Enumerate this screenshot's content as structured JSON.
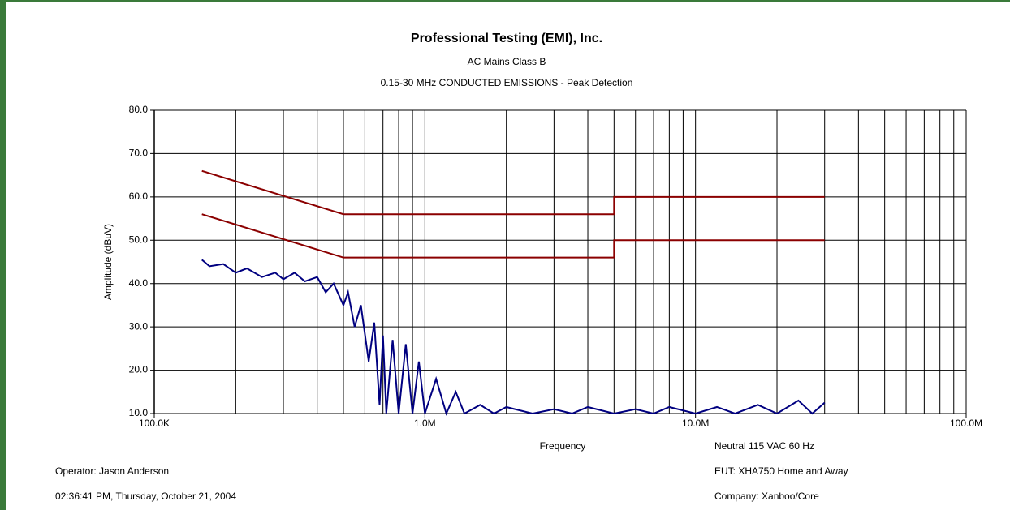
{
  "chart_data": {
    "type": "line",
    "title": "Professional Testing (EMI), Inc.",
    "subtitles": [
      "AC Mains  Class B",
      "0.15-30 MHz  CONDUCTED EMISSIONS - Peak Detection"
    ],
    "xlabel": "Frequency",
    "ylabel": "Amplitude (dBuV)",
    "xlog": true,
    "grid": true,
    "xlim": [
      100000,
      100000000
    ],
    "ylim": [
      10,
      80
    ],
    "xticks": [
      {
        "value": 100000,
        "label": "100.0K"
      },
      {
        "value": 1000000,
        "label": "1.0M"
      },
      {
        "value": 10000000,
        "label": "10.0M"
      },
      {
        "value": 100000000,
        "label": "100.0M"
      }
    ],
    "xminorticks": [
      200000,
      300000,
      400000,
      500000,
      600000,
      700000,
      800000,
      900000,
      2000000,
      3000000,
      4000000,
      5000000,
      6000000,
      7000000,
      8000000,
      9000000,
      20000000,
      30000000,
      40000000,
      50000000,
      60000000,
      70000000,
      80000000,
      90000000
    ],
    "yticks": [
      {
        "value": 10,
        "label": "10.0"
      },
      {
        "value": 20,
        "label": "20.0"
      },
      {
        "value": 30,
        "label": "30.0"
      },
      {
        "value": 40,
        "label": "40.0"
      },
      {
        "value": 50,
        "label": "50.0"
      },
      {
        "value": 60,
        "label": "60.0"
      },
      {
        "value": 70,
        "label": "70.0"
      },
      {
        "value": 80,
        "label": "80.0"
      }
    ],
    "series": [
      {
        "color": "#8b0000",
        "x": [
          150000,
          500000,
          5000000,
          5000000,
          30000000
        ],
        "values": [
          66,
          56,
          56,
          60,
          60
        ]
      },
      {
        "color": "#8b0000",
        "x": [
          150000,
          500000,
          5000000,
          5000000,
          30000000
        ],
        "values": [
          56,
          46,
          46,
          50,
          50
        ]
      },
      {
        "color": "#000080",
        "x": [
          150000,
          160000,
          180000,
          200000,
          220000,
          250000,
          280000,
          300000,
          330000,
          360000,
          400000,
          430000,
          460000,
          500000,
          520000,
          550000,
          580000,
          620000,
          650000,
          680000,
          700000,
          720000,
          760000,
          800000,
          850000,
          900000,
          950000,
          1000000,
          1100000,
          1200000,
          1300000,
          1400000,
          1600000,
          1800000,
          2000000,
          2500000,
          3000000,
          3500000,
          4000000,
          5000000,
          6000000,
          7000000,
          8000000,
          10000000,
          12000000,
          14000000,
          17000000,
          20000000,
          24000000,
          27000000,
          30000000
        ],
        "values": [
          45.5,
          44,
          44.5,
          42.5,
          43.5,
          41.5,
          42.5,
          41,
          42.5,
          40.5,
          41.5,
          38,
          40,
          35,
          38,
          30,
          35,
          22,
          31,
          12,
          28,
          10,
          27,
          10,
          26,
          10,
          22,
          10,
          18,
          10,
          15,
          10,
          12,
          10,
          11.5,
          10,
          11,
          10,
          11.5,
          10,
          11,
          10,
          11.5,
          10,
          11.5,
          10,
          12,
          10,
          13,
          10,
          12.5
        ]
      }
    ],
    "annotations": [
      "Neutral 115 VAC 60 Hz",
      "Operator: Jason Anderson",
      "EUT: XHA750 Home and Away",
      "02:36:41 PM, Thursday, October 21, 2004",
      "Company: Xanboo/Core"
    ]
  }
}
